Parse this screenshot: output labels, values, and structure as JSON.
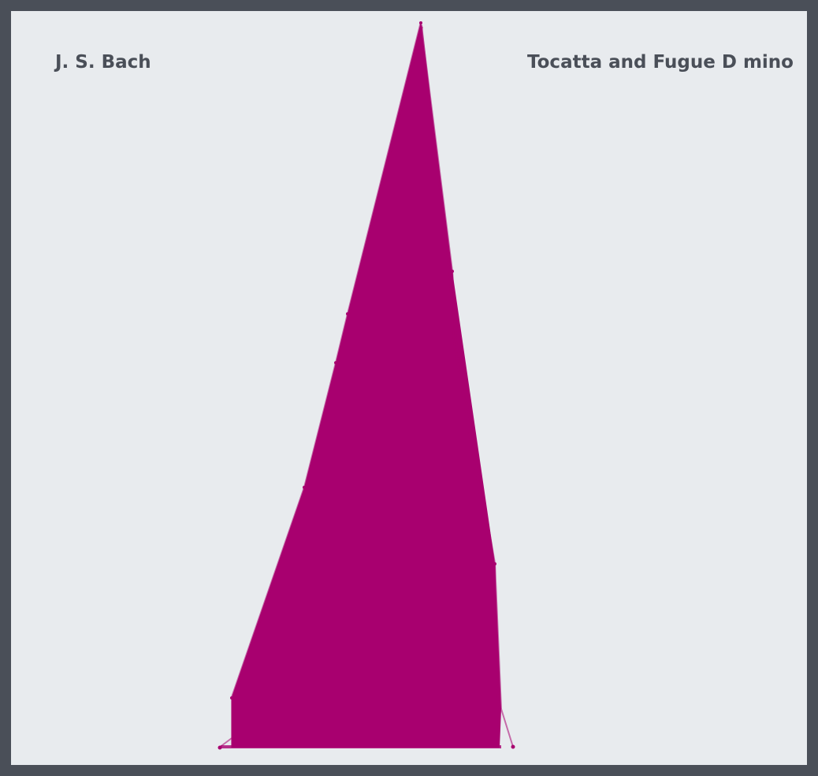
{
  "composer": "J. S. Bach",
  "work_title": "Tocatta and Fugue D mino",
  "colors": {
    "frame": "#4a4f58",
    "background": "#e8ebee",
    "accent": "#a8006f",
    "text": "#4a4f58"
  }
}
